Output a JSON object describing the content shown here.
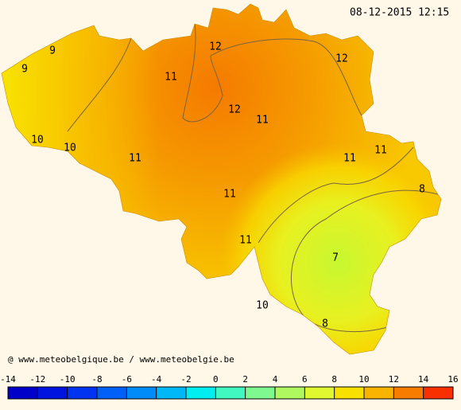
{
  "timestamp": "08-12-2015 12:15",
  "credit": "@ www.meteobelgique.be / www.meteobelgie.be",
  "contour_labels": [
    9,
    9,
    11,
    12,
    12,
    12,
    11,
    10,
    10,
    11,
    11,
    11,
    11,
    8,
    11,
    7,
    10,
    8
  ],
  "colorbar": {
    "ticks": [
      -14,
      -12,
      -10,
      -8,
      -6,
      -4,
      -2,
      0,
      2,
      4,
      6,
      8,
      10,
      12,
      14,
      16
    ],
    "colors": [
      "#0000c8",
      "#0014e0",
      "#0034f0",
      "#0060f8",
      "#008cf8",
      "#00b8f8",
      "#00eef0",
      "#40f8c0",
      "#80f890",
      "#b0f860",
      "#e0f830",
      "#f8e000",
      "#f8b400",
      "#f87c00",
      "#f83000"
    ]
  }
}
